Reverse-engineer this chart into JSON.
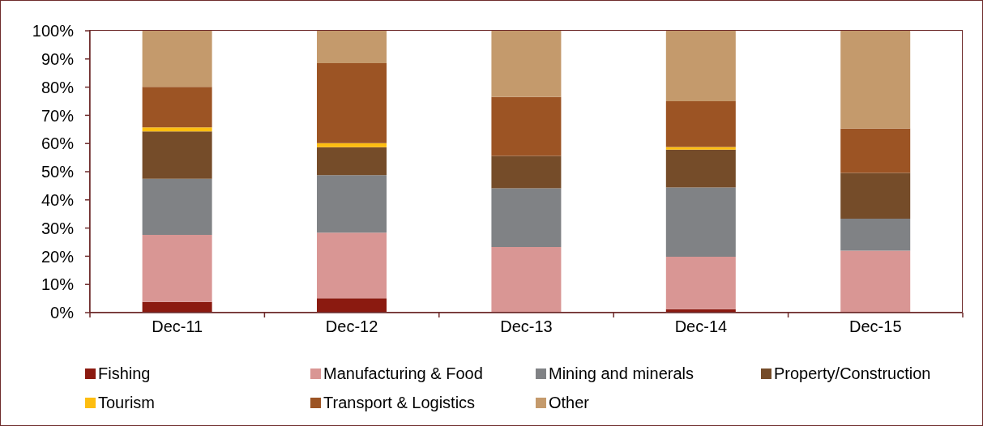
{
  "chart_data": {
    "type": "bar",
    "stacked": true,
    "legend": "bottom",
    "categories": [
      "Dec-11",
      "Dec-12",
      "Dec-13",
      "Dec-14",
      "Dec-15"
    ],
    "series": [
      {
        "name": "Fishing",
        "color": "#8b1a10",
        "values": [
          3.8,
          5.1,
          0,
          1.2,
          0
        ]
      },
      {
        "name": "Manufacturing & Food",
        "color": "#d99694",
        "values": [
          23.8,
          23.3,
          23.3,
          18.6,
          22.0
        ]
      },
      {
        "name": "Mining and minerals",
        "color": "#808285",
        "values": [
          19.9,
          20.4,
          20.8,
          24.6,
          11.3
        ]
      },
      {
        "name": "Property/Construction",
        "color": "#754c29",
        "values": [
          16.8,
          9.9,
          11.5,
          13.4,
          16.3
        ]
      },
      {
        "name": "Tourism",
        "color": "#fdbd10",
        "values": [
          1.4,
          1.4,
          0,
          1.0,
          0
        ]
      },
      {
        "name": "Transport & Logistics",
        "color": "#9c5424",
        "values": [
          14.4,
          28.4,
          20.9,
          16.2,
          15.7
        ]
      },
      {
        "name": "Other",
        "color": "#c49a6c",
        "values": [
          19.9,
          11.5,
          23.5,
          25.0,
          34.7
        ]
      }
    ],
    "ylim": [
      0,
      100
    ],
    "yticks": [
      {
        "value": 0,
        "label": "0%"
      },
      {
        "value": 10,
        "label": "10%"
      },
      {
        "value": 20,
        "label": "20%"
      },
      {
        "value": 30,
        "label": "30%"
      },
      {
        "value": 40,
        "label": "40%"
      },
      {
        "value": 50,
        "label": "50%"
      },
      {
        "value": 60,
        "label": "60%"
      },
      {
        "value": 70,
        "label": "70%"
      },
      {
        "value": 80,
        "label": "80%"
      },
      {
        "value": 90,
        "label": "90%"
      },
      {
        "value": 100,
        "label": "100%"
      }
    ]
  }
}
